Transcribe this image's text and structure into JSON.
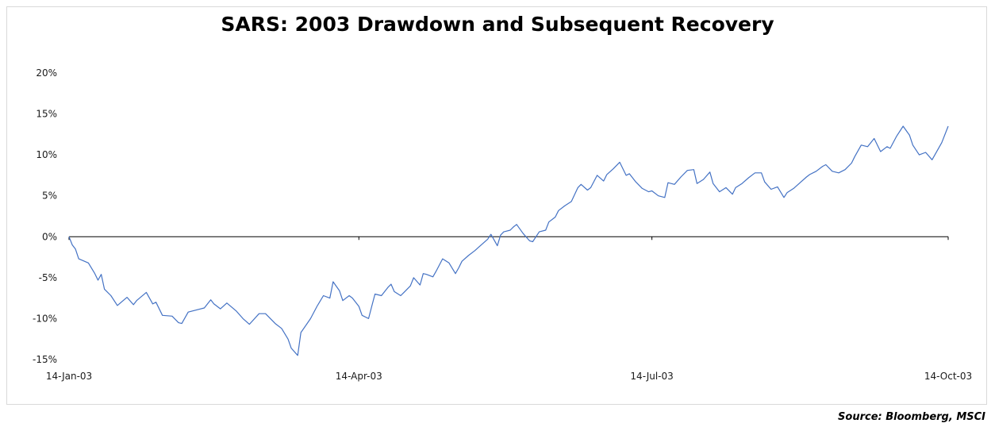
{
  "chart_data": {
    "type": "line",
    "title": "SARS: 2003 Drawdown and Subsequent Recovery",
    "source": "Source: Bloomberg, MSCI",
    "xlabel": "",
    "ylabel": "",
    "ylim": [
      -15,
      20
    ],
    "xlim": [
      "2003-01-14",
      "2003-10-14"
    ],
    "grid": false,
    "legend": "none",
    "line_color": "#4472C4",
    "y_ticks": [
      {
        "value": 20,
        "label": "20%"
      },
      {
        "value": 15,
        "label": "15%"
      },
      {
        "value": 10,
        "label": "10%"
      },
      {
        "value": 5,
        "label": "5%"
      },
      {
        "value": 0,
        "label": "0%"
      },
      {
        "value": -5,
        "label": "-5%"
      },
      {
        "value": -10,
        "label": "-10%"
      },
      {
        "value": -15,
        "label": "-15%"
      }
    ],
    "x_ticks": [
      {
        "value": "2003-01-14",
        "label": "14-Jan-03"
      },
      {
        "value": "2003-04-14",
        "label": "14-Apr-03"
      },
      {
        "value": "2003-07-14",
        "label": "14-Jul-03"
      },
      {
        "value": "2003-10-14",
        "label": "14-Oct-03"
      }
    ],
    "series": [
      {
        "x": [
          "2003-01-14",
          "2003-01-15",
          "2003-01-16",
          "2003-01-17",
          "2003-01-20",
          "2003-01-22",
          "2003-01-23",
          "2003-01-24",
          "2003-01-25",
          "2003-01-27",
          "2003-01-29",
          "2003-02-01",
          "2003-02-03",
          "2003-02-04",
          "2003-02-07",
          "2003-02-09",
          "2003-02-10",
          "2003-02-12",
          "2003-02-15",
          "2003-02-17",
          "2003-02-18",
          "2003-02-20",
          "2003-02-25",
          "2003-02-27",
          "2003-02-28",
          "2003-03-02",
          "2003-03-04",
          "2003-03-07",
          "2003-03-09",
          "2003-03-11",
          "2003-03-14",
          "2003-03-16",
          "2003-03-19",
          "2003-03-21",
          "2003-03-23",
          "2003-03-24",
          "2003-03-26",
          "2003-03-27",
          "2003-03-30",
          "2003-04-01",
          "2003-04-03",
          "2003-04-05",
          "2003-04-06",
          "2003-04-08",
          "2003-04-09",
          "2003-04-11",
          "2003-04-12",
          "2003-04-14",
          "2003-04-15",
          "2003-04-17",
          "2003-04-18",
          "2003-04-19",
          "2003-04-21",
          "2003-04-23",
          "2003-04-24",
          "2003-04-25",
          "2003-04-27",
          "2003-04-28",
          "2003-04-30",
          "2003-05-01",
          "2003-05-03",
          "2003-05-04",
          "2003-05-05",
          "2003-05-07",
          "2003-05-08",
          "2003-05-10",
          "2003-05-12",
          "2003-05-14",
          "2003-05-15",
          "2003-05-16",
          "2003-05-18",
          "2003-05-20",
          "2003-05-22",
          "2003-05-24",
          "2003-05-25",
          "2003-05-27",
          "2003-05-28",
          "2003-05-29",
          "2003-05-31",
          "2003-06-01",
          "2003-06-02",
          "2003-06-04",
          "2003-06-06",
          "2003-06-07",
          "2003-06-09",
          "2003-06-11",
          "2003-06-12",
          "2003-06-14",
          "2003-06-15",
          "2003-06-17",
          "2003-06-19",
          "2003-06-21",
          "2003-06-22",
          "2003-06-24",
          "2003-06-25",
          "2003-06-27",
          "2003-06-29",
          "2003-06-30",
          "2003-07-02",
          "2003-07-04",
          "2003-07-06",
          "2003-07-07",
          "2003-07-09",
          "2003-07-11",
          "2003-07-13",
          "2003-07-14",
          "2003-07-16",
          "2003-07-18",
          "2003-07-19",
          "2003-07-21",
          "2003-07-23",
          "2003-07-25",
          "2003-07-27",
          "2003-07-28",
          "2003-07-30",
          "2003-08-01",
          "2003-08-02",
          "2003-08-04",
          "2003-08-06",
          "2003-08-08",
          "2003-08-09",
          "2003-08-11",
          "2003-08-13",
          "2003-08-15",
          "2003-08-17",
          "2003-08-18",
          "2003-08-20",
          "2003-08-22",
          "2003-08-24",
          "2003-08-25",
          "2003-08-27",
          "2003-08-29",
          "2003-08-31",
          "2003-09-01",
          "2003-09-03",
          "2003-09-05",
          "2003-09-06",
          "2003-09-08",
          "2003-09-10",
          "2003-09-12",
          "2003-09-14",
          "2003-09-15",
          "2003-09-17",
          "2003-09-19",
          "2003-09-21",
          "2003-09-23",
          "2003-09-25",
          "2003-09-26",
          "2003-09-28",
          "2003-09-30",
          "2003-10-02",
          "2003-10-03",
          "2003-10-05",
          "2003-10-07",
          "2003-10-09",
          "2003-10-12",
          "2003-10-14"
        ],
        "values": [
          0.0,
          -1.0,
          -1.5,
          -2.7,
          -3.2,
          -4.5,
          -5.3,
          -4.6,
          -6.4,
          -7.2,
          -8.4,
          -7.4,
          -8.3,
          -7.8,
          -6.8,
          -8.2,
          -8.0,
          -9.6,
          -9.7,
          -10.5,
          -10.6,
          -9.2,
          -8.7,
          -7.7,
          -8.2,
          -8.8,
          -8.1,
          -9.1,
          -10.0,
          -10.7,
          -9.4,
          -9.4,
          -10.6,
          -11.2,
          -12.5,
          -13.6,
          -14.5,
          -11.7,
          -10.0,
          -8.5,
          -7.2,
          -7.5,
          -5.5,
          -6.6,
          -7.8,
          -7.2,
          -7.5,
          -8.5,
          -9.6,
          -10.0,
          -8.5,
          -7.0,
          -7.2,
          -6.2,
          -5.8,
          -6.7,
          -7.2,
          -6.8,
          -6.0,
          -5.0,
          -5.9,
          -4.5,
          -4.6,
          -4.9,
          -4.2,
          -2.7,
          -3.2,
          -4.5,
          -3.8,
          -3.0,
          -2.3,
          -1.7,
          -1.0,
          -0.3,
          0.3,
          -1.1,
          0.2,
          0.6,
          0.8,
          1.2,
          1.5,
          0.4,
          -0.5,
          -0.6,
          0.6,
          0.8,
          1.8,
          2.4,
          3.2,
          3.8,
          4.3,
          6.0,
          6.4,
          5.7,
          6.0,
          7.5,
          6.8,
          7.6,
          8.3,
          9.1,
          7.5,
          7.7,
          6.7,
          5.9,
          5.5,
          5.6,
          5.0,
          4.8,
          6.6,
          6.4,
          7.3,
          8.1,
          8.2,
          6.5,
          7.0,
          7.9,
          6.5,
          5.5,
          6.0,
          5.2,
          6.0,
          6.5,
          7.2,
          7.8,
          7.8,
          6.7,
          5.8,
          6.1,
          4.8,
          5.4,
          5.9,
          6.6,
          7.3,
          7.6,
          8.0,
          8.6,
          8.8,
          8.0,
          7.8,
          8.2,
          9.0,
          9.8,
          11.2,
          11.0,
          12.0,
          10.4,
          11.0,
          10.8,
          12.3,
          13.5,
          12.4,
          11.2,
          10.0,
          10.3,
          9.4,
          11.5,
          13.5
        ]
      }
    ]
  }
}
